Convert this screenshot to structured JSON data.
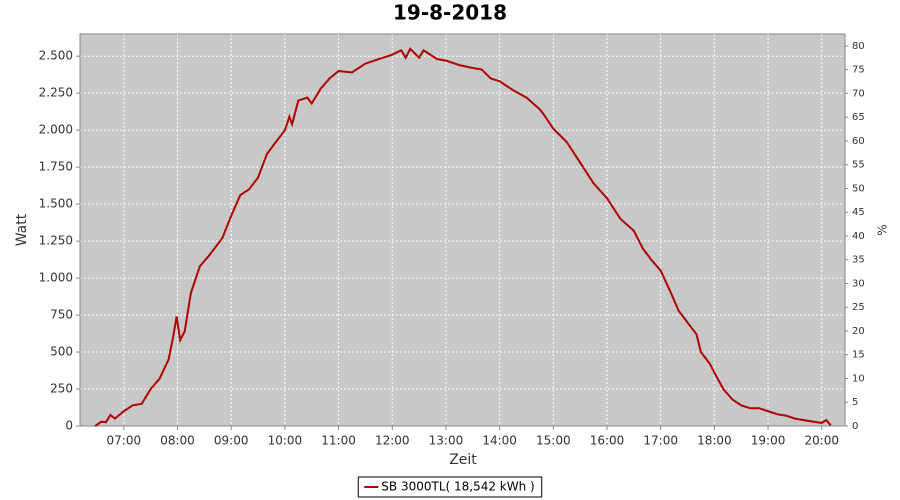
{
  "chart_data": {
    "type": "line",
    "title": "19-8-2018",
    "x_label": "Zeit",
    "y_label": "Watt",
    "y2_label": "%",
    "x": [
      "06:28",
      "06:35",
      "06:40",
      "06:45",
      "06:50",
      "07:00",
      "07:10",
      "07:20",
      "07:30",
      "07:40",
      "07:50",
      "07:55",
      "07:59",
      "08:03",
      "08:08",
      "08:15",
      "08:25",
      "08:35",
      "08:50",
      "09:00",
      "09:10",
      "09:20",
      "09:30",
      "09:40",
      "09:50",
      "10:00",
      "10:05",
      "10:08",
      "10:15",
      "10:25",
      "10:30",
      "10:40",
      "10:50",
      "11:00",
      "11:15",
      "11:30",
      "11:45",
      "12:00",
      "12:10",
      "12:15",
      "12:20",
      "12:30",
      "12:35",
      "12:50",
      "13:00",
      "13:15",
      "13:30",
      "13:40",
      "13:50",
      "14:00",
      "14:15",
      "14:30",
      "14:45",
      "14:50",
      "15:00",
      "15:15",
      "15:30",
      "15:45",
      "16:00",
      "16:15",
      "16:30",
      "16:40",
      "16:50",
      "17:00",
      "17:10",
      "17:20",
      "17:30",
      "17:40",
      "17:45",
      "17:55",
      "18:00",
      "18:10",
      "18:20",
      "18:30",
      "18:40",
      "18:50",
      "19:00",
      "19:10",
      "19:20",
      "19:30",
      "19:40",
      "19:50",
      "20:00",
      "20:05",
      "20:10"
    ],
    "series": [
      {
        "name": "SB 3000TL( 18,542 kWh )",
        "color": "#b00000",
        "values": [
          0,
          30,
          25,
          75,
          50,
          100,
          140,
          150,
          250,
          320,
          450,
          600,
          740,
          580,
          640,
          900,
          1080,
          1150,
          1270,
          1420,
          1560,
          1600,
          1680,
          1840,
          1920,
          2000,
          2090,
          2040,
          2200,
          2220,
          2180,
          2280,
          2350,
          2400,
          2390,
          2450,
          2480,
          2510,
          2540,
          2490,
          2550,
          2490,
          2540,
          2480,
          2470,
          2440,
          2420,
          2410,
          2350,
          2330,
          2270,
          2220,
          2140,
          2100,
          2010,
          1920,
          1780,
          1640,
          1540,
          1400,
          1320,
          1200,
          1120,
          1050,
          920,
          780,
          700,
          620,
          500,
          420,
          360,
          250,
          180,
          140,
          120,
          120,
          100,
          80,
          70,
          50,
          40,
          30,
          20,
          40,
          5
        ]
      }
    ],
    "xlim": [
      "06:11",
      "20:26"
    ],
    "xticks": [
      "07:00",
      "08:00",
      "09:00",
      "10:00",
      "11:00",
      "12:00",
      "13:00",
      "14:00",
      "15:00",
      "16:00",
      "17:00",
      "18:00",
      "19:00",
      "20:00"
    ],
    "ylim": [
      0,
      2650
    ],
    "yticks": [
      0,
      250,
      500,
      750,
      {
        "value": 1000,
        "label": "1.000"
      },
      {
        "value": 1250,
        "label": "1.250"
      },
      {
        "value": 1500,
        "label": "1.500"
      },
      {
        "value": 1750,
        "label": "1.750"
      },
      {
        "value": 2000,
        "label": "2.000"
      },
      {
        "value": 2250,
        "label": "2.250"
      },
      {
        "value": 2500,
        "label": "2.500"
      }
    ],
    "y2lim": [
      0,
      82.5
    ],
    "y2ticks": [
      0,
      5,
      10,
      15,
      20,
      25,
      30,
      35,
      40,
      45,
      50,
      55,
      60,
      65,
      70,
      75,
      80
    ],
    "grid": true,
    "legend": "bottom"
  }
}
